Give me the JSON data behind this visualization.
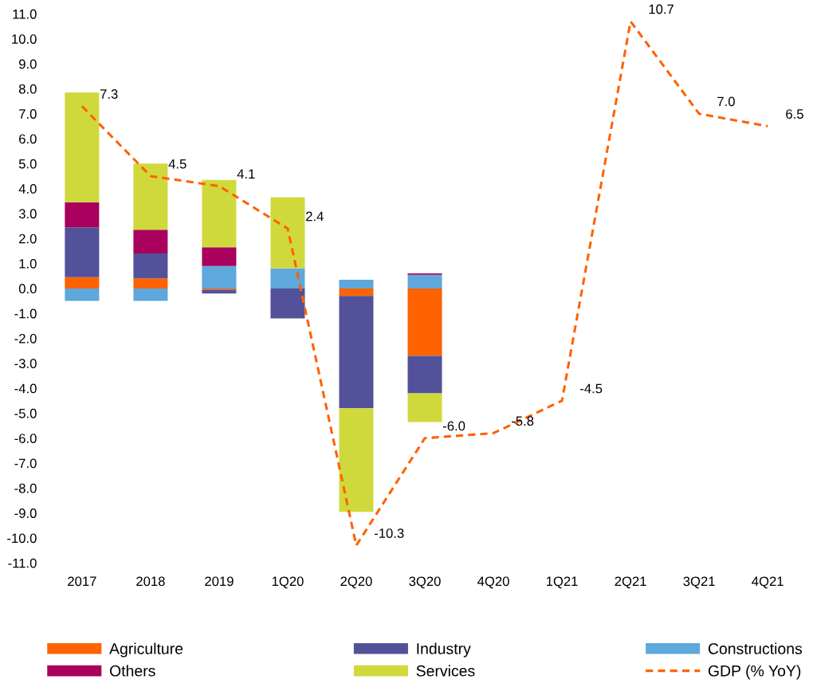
{
  "chart_data": {
    "type": "bar",
    "stacked": true,
    "categories": [
      "2017",
      "2018",
      "2019",
      "1Q20",
      "2Q20",
      "3Q20",
      "4Q20",
      "1Q21",
      "2Q21",
      "3Q21",
      "4Q21"
    ],
    "series": [
      {
        "name": "Agriculture",
        "color": "#ff6200",
        "values": [
          0.45,
          0.4,
          -0.05,
          0,
          -0.3,
          -2.7,
          null,
          null,
          null,
          null,
          null
        ]
      },
      {
        "name": "Industry",
        "color": "#525199",
        "values": [
          2.0,
          1.0,
          -0.15,
          -1.2,
          -4.5,
          -1.5,
          null,
          null,
          null,
          null,
          null
        ]
      },
      {
        "name": "Constructions",
        "color": "#5ea8dc",
        "values": [
          -0.5,
          -0.5,
          0.9,
          0.8,
          0.35,
          0.55,
          null,
          null,
          null,
          null,
          null
        ]
      },
      {
        "name": "Others",
        "color": "#a8005c",
        "values": [
          1.0,
          0.95,
          0.75,
          0,
          0,
          0.05,
          null,
          null,
          null,
          null,
          null
        ]
      },
      {
        "name": "Services",
        "color": "#d0d93c",
        "values": [
          4.4,
          2.65,
          2.7,
          2.85,
          -4.15,
          -1.15,
          null,
          null,
          null,
          null,
          null
        ]
      },
      {
        "name": "GDP (% YoY)",
        "type": "line",
        "color": "#ff6200",
        "line_style": "dashed",
        "marker": "none",
        "values": [
          7.3,
          4.5,
          4.1,
          2.4,
          -10.3,
          -6.0,
          -5.8,
          -4.5,
          10.7,
          7.0,
          6.5
        ],
        "value_labels": [
          "7.3",
          "4.5",
          "4.1",
          "2.4",
          "-10.3",
          "-6.0",
          "-5.8",
          "-4.5",
          "10.7",
          "7.0",
          "6.5"
        ]
      }
    ],
    "ylim": [
      -11,
      11
    ],
    "yticks": [
      {
        "value": -11,
        "label": "-11.0"
      },
      {
        "value": -10,
        "label": "-10.0"
      },
      {
        "value": -9,
        "label": "-9.0"
      },
      {
        "value": -8,
        "label": "-8.0"
      },
      {
        "value": -7,
        "label": "-7.0"
      },
      {
        "value": -6,
        "label": "-6.0"
      },
      {
        "value": -5,
        "label": "-5.0"
      },
      {
        "value": -4,
        "label": "-4.0"
      },
      {
        "value": -3,
        "label": "-3.0"
      },
      {
        "value": -2,
        "label": "-2.0"
      },
      {
        "value": -1,
        "label": "-1.0"
      },
      {
        "value": 0,
        "label": "0.0"
      },
      {
        "value": 1,
        "label": "1.0"
      },
      {
        "value": 2,
        "label": "2.0"
      },
      {
        "value": 3,
        "label": "3.0"
      },
      {
        "value": 4,
        "label": "4.0"
      },
      {
        "value": 5,
        "label": "5.0"
      },
      {
        "value": 6,
        "label": "6.0"
      },
      {
        "value": 7,
        "label": "7.0"
      },
      {
        "value": 8,
        "label": "8.0"
      },
      {
        "value": 9,
        "label": "9.0"
      },
      {
        "value": 10,
        "label": "10.0"
      },
      {
        "value": 11,
        "label": "11.0"
      }
    ],
    "grid": false,
    "legend": "bottom"
  }
}
